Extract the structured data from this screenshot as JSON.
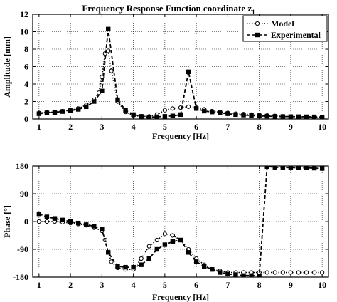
{
  "chart_data": [
    {
      "type": "line",
      "title": "Frequency Response Function coordinate z",
      "title_subscript": "1",
      "xlabel": "Frequency [Hz]",
      "ylabel": "Amplitude [mm]",
      "xlim": [
        0.8,
        10.2
      ],
      "ylim": [
        0,
        12
      ],
      "x_ticks": [
        "1",
        "2",
        "3",
        "4",
        "5",
        "6",
        "7",
        "8",
        "9",
        "10"
      ],
      "y_ticks": [
        "0",
        "2",
        "4",
        "6",
        "8",
        "10",
        "12"
      ],
      "x_tick_values": [
        1,
        2,
        3,
        4,
        5,
        6,
        7,
        8,
        9,
        10
      ],
      "y_tick_values": [
        0,
        2,
        4,
        6,
        8,
        10,
        12
      ],
      "grid": true,
      "legend_position": "top-right",
      "series": [
        {
          "name": "Model",
          "style": "dotted",
          "marker": "circle",
          "x": [
            1,
            1.25,
            1.5,
            1.75,
            2,
            2.25,
            2.5,
            2.75,
            2.9,
            3,
            3.1,
            3.2,
            3.3,
            3.5,
            3.75,
            4,
            4.25,
            4.5,
            4.75,
            5,
            5.25,
            5.5,
            5.75,
            6,
            6.25,
            6.5,
            6.75,
            7,
            7.25,
            7.5,
            7.75,
            8,
            8.25,
            8.5,
            8.75,
            9,
            9.25,
            9.5,
            9.75,
            10
          ],
          "y": [
            0.7,
            0.75,
            0.8,
            0.9,
            1.0,
            1.2,
            1.6,
            2.2,
            3.0,
            4.8,
            7.5,
            7.8,
            5.5,
            2.0,
            0.8,
            0.4,
            0.3,
            0.3,
            0.5,
            1.0,
            1.2,
            1.3,
            1.4,
            1.3,
            1.1,
            0.9,
            0.8,
            0.7,
            0.6,
            0.55,
            0.5,
            0.45,
            0.4,
            0.35,
            0.3,
            0.28,
            0.25,
            0.22,
            0.2,
            0.18
          ]
        },
        {
          "name": "Experimental",
          "style": "dashed",
          "marker": "square",
          "x": [
            1,
            1.25,
            1.5,
            1.75,
            2,
            2.25,
            2.5,
            2.75,
            3,
            3.2,
            3.5,
            3.75,
            4,
            4.25,
            4.5,
            4.75,
            5,
            5.25,
            5.5,
            5.75,
            6,
            6.25,
            6.5,
            6.75,
            7,
            7.25,
            7.5,
            7.75,
            8,
            8.25,
            8.5,
            8.75,
            9,
            9.25,
            9.5,
            9.75,
            10
          ],
          "y": [
            0.6,
            0.7,
            0.75,
            0.85,
            0.95,
            1.1,
            1.4,
            2.0,
            3.2,
            10.3,
            2.2,
            1.0,
            0.5,
            0.3,
            0.2,
            0.25,
            0.3,
            0.35,
            0.5,
            5.4,
            1.2,
            0.9,
            0.8,
            0.7,
            0.6,
            0.5,
            0.45,
            0.4,
            0.35,
            0.32,
            0.3,
            0.28,
            0.27,
            0.26,
            0.25,
            0.24,
            0.22
          ]
        }
      ]
    },
    {
      "type": "line",
      "title": "",
      "xlabel": "Frequency [Hz]",
      "ylabel": "Phase [°]",
      "xlim": [
        0.8,
        10.2
      ],
      "ylim": [
        -180,
        180
      ],
      "x_ticks": [
        "1",
        "2",
        "3",
        "4",
        "5",
        "6",
        "7",
        "8",
        "9",
        "10"
      ],
      "y_ticks": [
        "180",
        "90",
        "0",
        "-90",
        "-180"
      ],
      "x_tick_values": [
        1,
        2,
        3,
        4,
        5,
        6,
        7,
        8,
        9,
        10
      ],
      "y_tick_values": [
        180,
        90,
        0,
        -90,
        -180
      ],
      "grid": true,
      "series": [
        {
          "name": "Model",
          "style": "dotted",
          "marker": "circle",
          "x": [
            1,
            1.25,
            1.5,
            1.75,
            2,
            2.25,
            2.5,
            2.75,
            3,
            3.1,
            3.2,
            3.3,
            3.5,
            3.75,
            4,
            4.25,
            4.5,
            4.75,
            5,
            5.25,
            5.5,
            5.75,
            6,
            6.25,
            6.5,
            6.75,
            7,
            7.25,
            7.5,
            7.75,
            8,
            8.25,
            8.5,
            8.75,
            9,
            9.25,
            9.5,
            9.75,
            10
          ],
          "y": [
            0,
            0,
            0,
            -2,
            -5,
            -8,
            -12,
            -20,
            -30,
            -60,
            -100,
            -130,
            -150,
            -155,
            -155,
            -120,
            -80,
            -60,
            -40,
            -45,
            -60,
            -90,
            -120,
            -140,
            -155,
            -160,
            -165,
            -165,
            -165,
            -165,
            -165,
            -165,
            -165,
            -165,
            -165,
            -165,
            -165,
            -165,
            -165
          ]
        },
        {
          "name": "Experimental",
          "style": "dashed",
          "marker": "square",
          "x": [
            1,
            1.25,
            1.5,
            1.75,
            2,
            2.25,
            2.5,
            2.75,
            3,
            3.2,
            3.5,
            3.75,
            4,
            4.25,
            4.5,
            4.75,
            5,
            5.25,
            5.5,
            5.75,
            6,
            6.25,
            6.5,
            6.75,
            7,
            7.25,
            7.5,
            7.75,
            8,
            8.25,
            8.5,
            8.75,
            9,
            9.25,
            9.5,
            9.75,
            10
          ],
          "y": [
            25,
            15,
            10,
            5,
            0,
            -5,
            -10,
            -15,
            -25,
            -100,
            -145,
            -148,
            -148,
            -140,
            -120,
            -90,
            -75,
            -65,
            -60,
            -100,
            -130,
            -145,
            -155,
            -165,
            -170,
            -172,
            -175,
            -175,
            -176,
            178,
            176,
            175,
            175,
            174,
            174,
            173,
            172
          ]
        }
      ]
    }
  ]
}
